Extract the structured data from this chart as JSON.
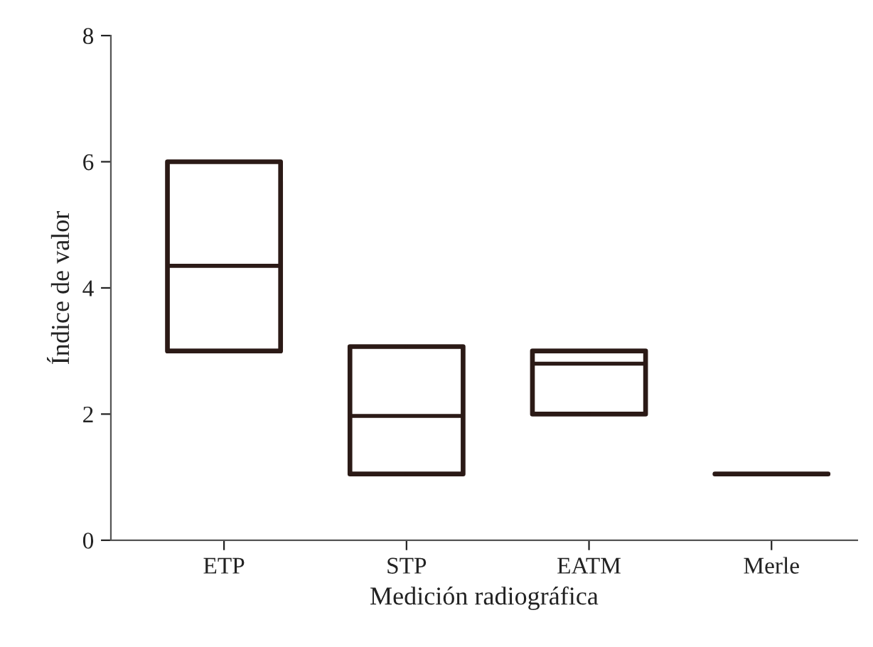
{
  "chart_data": {
    "type": "box",
    "xlabel": "Medición radiográfica",
    "ylabel": "Índice de valor",
    "categories": [
      "ETP",
      "STP",
      "EATM",
      "Merle"
    ],
    "boxes": [
      {
        "low": 3,
        "q1": 3,
        "median": 4.35,
        "q3": 6,
        "high": 6
      },
      {
        "low": 1.05,
        "q1": 1.05,
        "median": 1.97,
        "q3": 3.07,
        "high": 3.07
      },
      {
        "low": 2,
        "q1": 2,
        "median": 2.8,
        "q3": 3,
        "high": 3
      },
      {
        "low": 1.05,
        "q1": 1.05,
        "median": 1.05,
        "q3": 1.05,
        "high": 1.05
      }
    ],
    "color": "#2b1a16",
    "ylim": [
      0,
      8
    ],
    "yticks": [
      0,
      2,
      4,
      6,
      8
    ],
    "grid": false
  }
}
